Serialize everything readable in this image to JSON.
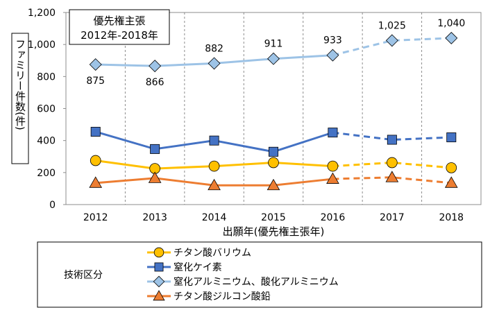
{
  "chart_data": {
    "type": "line",
    "title": "優先権主張",
    "subtitle": "2012年-2018年",
    "xlabel": "出願年(優先権主張年)",
    "ylabel": "ファミリー件数(件)",
    "ylim": [
      0,
      1200
    ],
    "yticks": [
      "0",
      "200",
      "400",
      "600",
      "800",
      "1,000",
      "1,200"
    ],
    "categories": [
      "2012",
      "2013",
      "2014",
      "2015",
      "2016",
      "2017",
      "2018"
    ],
    "solid_until_index": 4,
    "legend_title": "技術区分",
    "series": [
      {
        "name": "チタン酸バリウム",
        "values": [
          275,
          225,
          240,
          262,
          240,
          262,
          230
        ],
        "color": "#FFC000",
        "marker": "circle",
        "labels": []
      },
      {
        "name": "窒化ケイ素",
        "values": [
          455,
          347,
          400,
          330,
          450,
          405,
          420
        ],
        "color": "#4472C4",
        "marker": "square",
        "labels": []
      },
      {
        "name": "窒化アルミニウム、酸化アルミニウム",
        "values": [
          875,
          866,
          882,
          911,
          933,
          1025,
          1040
        ],
        "color": "#9DC3E6",
        "marker": "diamond",
        "labels": [
          "875",
          "866",
          "882",
          "911",
          "933",
          "1,025",
          "1,040"
        ]
      },
      {
        "name": "チタン酸ジルコン酸鉛",
        "values": [
          135,
          165,
          120,
          120,
          160,
          170,
          135
        ],
        "color": "#ED7D31",
        "marker": "triangle",
        "labels": []
      }
    ]
  }
}
